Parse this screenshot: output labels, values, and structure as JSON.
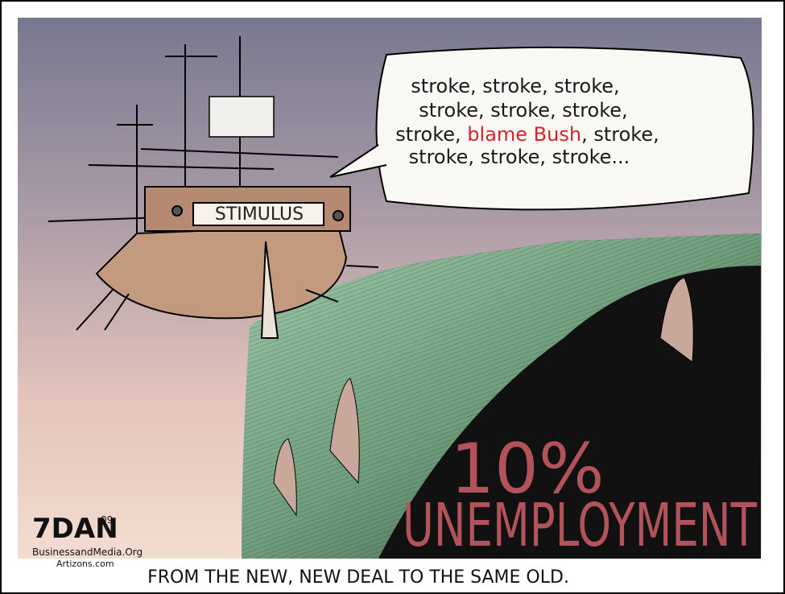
{
  "cartoon": {
    "ship_sign": "STIMULUS",
    "speech_bubble": {
      "lines": [
        [
          "stroke, stroke, stroke,"
        ],
        [
          "stroke, stroke, stroke,"
        ],
        [
          "stroke, ",
          "blame Bush",
          ", stroke,"
        ],
        [
          "stroke, stroke, stroke..."
        ]
      ]
    },
    "headline": {
      "percent": "10%",
      "word": "UNEMPLOYMENT"
    },
    "signature": {
      "name": "7DAN",
      "year": "09",
      "sites": [
        "BusinessandMedia.Org",
        "Artizons.com"
      ]
    },
    "caption": "FROM THE NEW, NEW DEAL TO THE SAME OLD."
  }
}
